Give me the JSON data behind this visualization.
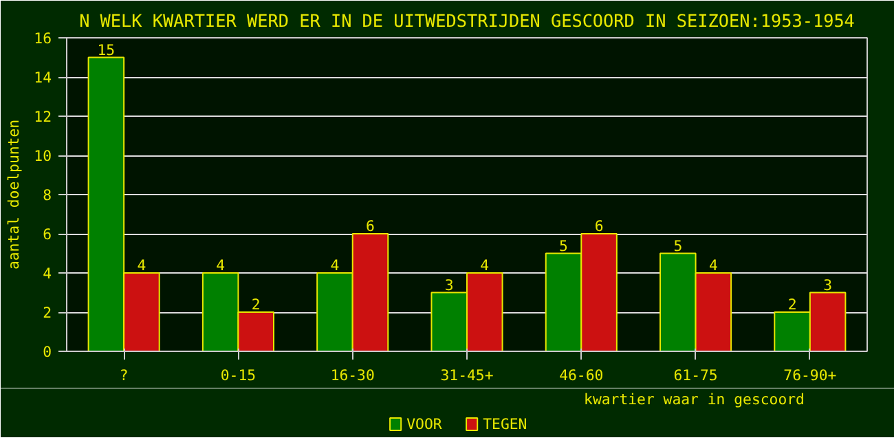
{
  "chart_data": {
    "type": "bar",
    "title": "N WELK KWARTIER WERD ER IN DE UITWEDSTRIJDEN GESCOORD IN SEIZOEN:1953-1954",
    "xlabel": "kwartier waar in gescoord",
    "ylabel": "aantal doelpunten",
    "categories": [
      "?",
      "0-15",
      "16-30",
      "31-45+",
      "46-60",
      "61-75",
      "76-90+"
    ],
    "series": [
      {
        "name": "VOOR",
        "color": "#008000",
        "values": [
          15,
          4,
          4,
          3,
          5,
          5,
          2
        ]
      },
      {
        "name": "TEGEN",
        "color": "#cc1111",
        "values": [
          4,
          2,
          6,
          4,
          6,
          4,
          3
        ]
      }
    ],
    "ylim": [
      0,
      16
    ],
    "yticks": [
      0,
      2,
      4,
      6,
      8,
      10,
      12,
      14,
      16
    ],
    "grid": "y",
    "legend": "bottom",
    "data_labels": true
  }
}
